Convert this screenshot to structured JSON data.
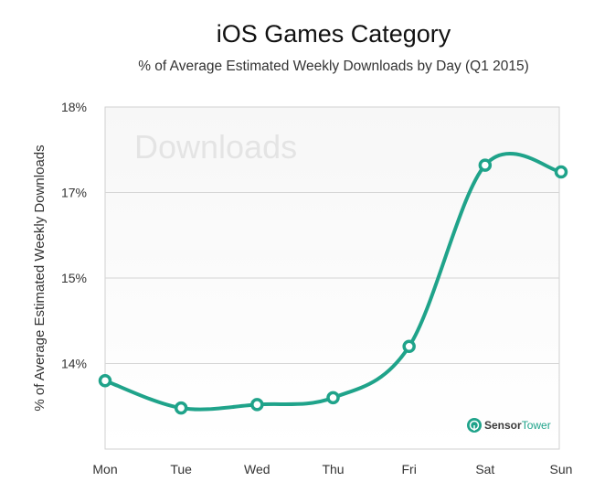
{
  "chart_data": {
    "type": "line",
    "title": "iOS Games Category",
    "subtitle": "% of Average Estimated Weekly Downloads by Day (Q1 2015)",
    "xlabel": "",
    "ylabel": "% of Average Estimated Weekly Downloads",
    "categories": [
      "Mon",
      "Tue",
      "Wed",
      "Thu",
      "Fri",
      "Sat",
      "Sun"
    ],
    "y_tick_labels": [
      "18%",
      "17%",
      "15%",
      "14%"
    ],
    "series": [
      {
        "values": [
          14.0,
          13.6,
          13.65,
          13.75,
          14.5,
          17.15,
          17.05
        ]
      }
    ],
    "ylim": [
      13.0,
      18.0
    ],
    "grid": true,
    "line_color": "#1fa38a",
    "watermark": "Downloads",
    "logo": {
      "sensor": "Sensor",
      "tower": "Tower"
    }
  }
}
